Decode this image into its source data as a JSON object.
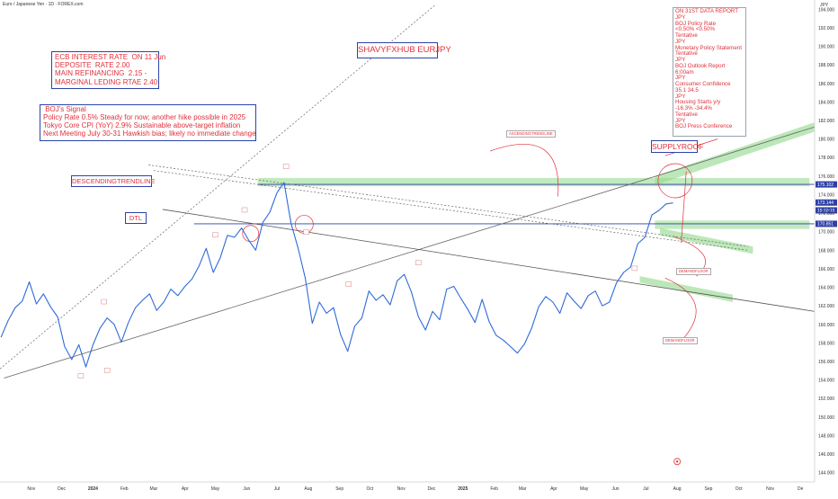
{
  "header": {
    "symbol_title": "Euro / Japanese Yen · 1D · FOREX.com",
    "currency": "JPY"
  },
  "annotations": {
    "title": "SHAVYFXHUB EURJPY",
    "ecb": "ECB INTEREST RATE  ON 11 Jun\nDEPOSITE  RATE 2.00\nMAIN REFINANCING  2.15 -\nMARGINAL LEDING RTAE 2.40",
    "boj": " BOJ's Signal\nPolicy Rate 0.5% Steady for now; another hike possible in 2025\nTokyo Core CPI (YoY) 2.9% Sustainable above-target inflation\nNext Meeting July 30-31 Hawkish bias; likely no immediate change",
    "data_report": "ON 31ST DATA REPORT\nJPY\nBOJ Policy Rate\n<0.50% <0.50%\nTentative\nJPY\nMonetary Policy Statement\nTentative\nJPY\nBOJ Outlook Report\n6:00am\nJPY\nConsumer Confidence\n35.1 34.5\nJPY\nHousing Starts y/y\n-16.3% -34.4%\nTentative\nJPY\nBOJ Press Conference",
    "supply": "SUPPLYROOF",
    "descending": "DESCENDINGTRENDLINE",
    "dtl": "DTL",
    "ascending": "ASCENDINGTRENDLINE",
    "demand1": "DEMANDFLOOR",
    "demand2": "DEMANDFLOOR"
  },
  "price_markers": {
    "resistance": "175.102",
    "current": "173.144",
    "countdown": "15:10:15",
    "support": "170.851"
  },
  "colors": {
    "price_line": "#2f6bd8",
    "trendline": "#5a5a5a",
    "zone": "#8fd88a",
    "marker": "#2d3fa6",
    "annotation": "#e0313b"
  },
  "chart_data": {
    "type": "line",
    "title": "Euro / Japanese Yen · 1D · FOREX.com",
    "xlabel": "",
    "ylabel": "",
    "y_unit": "JPY",
    "ylim": [
      143,
      195
    ],
    "y_ticks": [
      144,
      146,
      148,
      150,
      152,
      154,
      156,
      158,
      160,
      162,
      164,
      166,
      168,
      170,
      172,
      174,
      176,
      178,
      180,
      182,
      184,
      186,
      188,
      190,
      192,
      194
    ],
    "x_ticks": [
      "Nov",
      "Dec",
      "2024",
      "Feb",
      "Mar",
      "Apr",
      "May",
      "Jun",
      "Jul",
      "Aug",
      "Sep",
      "Oct",
      "Nov",
      "Dec",
      "2025",
      "Feb",
      "Mar",
      "Apr",
      "May",
      "Jun",
      "Jul",
      "Aug",
      "Sep",
      "Oct",
      "Nov",
      "De"
    ],
    "x_start": "2023-10-01",
    "x_end": "2025-12-15",
    "series": [
      {
        "x": [
          "2023-10-02",
          "2023-10-09",
          "2023-10-16",
          "2023-10-23",
          "2023-10-30",
          "2023-11-06",
          "2023-11-13",
          "2023-11-20",
          "2023-11-27",
          "2023-12-04",
          "2023-12-11",
          "2023-12-18",
          "2023-12-25",
          "2024-01-01",
          "2024-01-08",
          "2024-01-15",
          "2024-01-22",
          "2024-01-29",
          "2024-02-05",
          "2024-02-12",
          "2024-02-19",
          "2024-02-26",
          "2024-03-04",
          "2024-03-11",
          "2024-03-18",
          "2024-03-25",
          "2024-04-01",
          "2024-04-08",
          "2024-04-15",
          "2024-04-22",
          "2024-04-29",
          "2024-05-06",
          "2024-05-13",
          "2024-05-20",
          "2024-05-27",
          "2024-06-03",
          "2024-06-10",
          "2024-06-17",
          "2024-06-24",
          "2024-07-01",
          "2024-07-08",
          "2024-07-15",
          "2024-07-22",
          "2024-07-29",
          "2024-08-05",
          "2024-08-12",
          "2024-08-19",
          "2024-08-26",
          "2024-09-02",
          "2024-09-09",
          "2024-09-16",
          "2024-09-23",
          "2024-09-30",
          "2024-10-07",
          "2024-10-14",
          "2024-10-21",
          "2024-10-28",
          "2024-11-04",
          "2024-11-11",
          "2024-11-18",
          "2024-11-25",
          "2024-12-02",
          "2024-12-09",
          "2024-12-16",
          "2024-12-23",
          "2024-12-30",
          "2025-01-06",
          "2025-01-13",
          "2025-01-20",
          "2025-01-27",
          "2025-02-03",
          "2025-02-10",
          "2025-02-17",
          "2025-02-24",
          "2025-03-03",
          "2025-03-10",
          "2025-03-17",
          "2025-03-24",
          "2025-03-31",
          "2025-04-07",
          "2025-04-14",
          "2025-04-21",
          "2025-04-28",
          "2025-05-05",
          "2025-05-12",
          "2025-05-19",
          "2025-05-26",
          "2025-06-02",
          "2025-06-09",
          "2025-06-16",
          "2025-06-23",
          "2025-06-30",
          "2025-07-07",
          "2025-07-14",
          "2025-07-21",
          "2025-07-28"
        ],
        "y": [
          158.6,
          160.4,
          161.8,
          162.5,
          164.6,
          162.2,
          163.3,
          161.9,
          160.8,
          157.6,
          156.2,
          157.8,
          155.4,
          157.8,
          159.6,
          160.7,
          160.0,
          158.1,
          160.2,
          161.8,
          162.6,
          163.3,
          161.5,
          162.4,
          163.8,
          163.1,
          164.1,
          164.9,
          166.3,
          168.2,
          165.6,
          167.2,
          169.6,
          169.4,
          170.4,
          169.1,
          168.0,
          171.0,
          172.1,
          174.2,
          175.3,
          170.9,
          168.2,
          165.0,
          160.1,
          162.4,
          161.2,
          161.8,
          158.9,
          157.1,
          159.8,
          160.7,
          163.6,
          162.6,
          163.2,
          162.1,
          164.7,
          165.4,
          163.5,
          160.8,
          159.4,
          161.4,
          160.5,
          163.8,
          164.1,
          162.8,
          161.6,
          160.2,
          162.7,
          160.3,
          158.8,
          158.3,
          157.6,
          156.9,
          157.9,
          159.6,
          161.9,
          163.0,
          162.4,
          161.2,
          163.4,
          162.5,
          161.7,
          163.1,
          163.6,
          162.0,
          162.4,
          164.5,
          165.6,
          166.2,
          168.7,
          169.4,
          171.8,
          172.3,
          173.0,
          173.1
        ]
      }
    ]
  }
}
